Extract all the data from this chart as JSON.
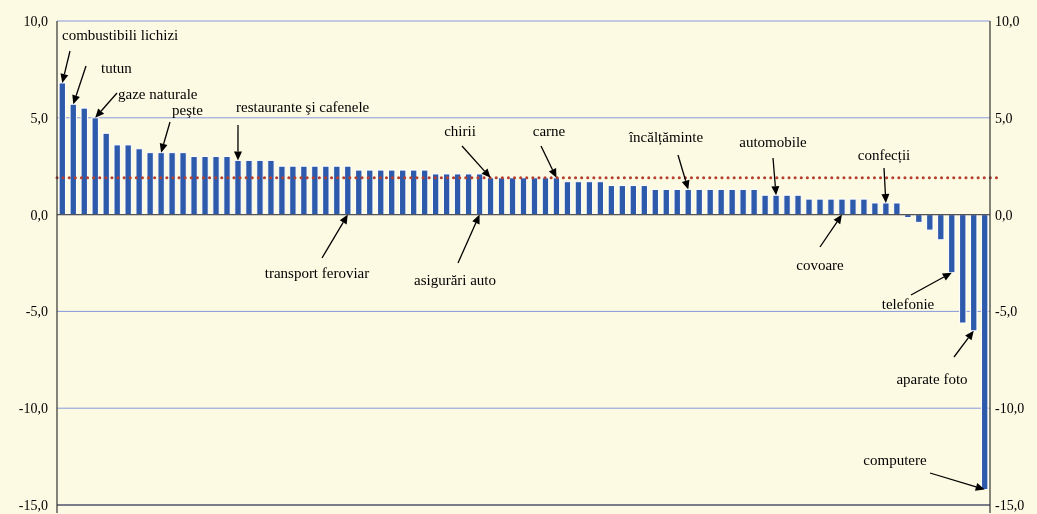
{
  "chart_data": {
    "type": "bar",
    "categories": [
      null,
      null,
      null,
      null,
      null,
      null,
      null,
      null,
      null,
      null,
      null,
      null,
      null,
      null,
      null,
      null,
      null,
      null,
      null,
      null,
      null,
      null,
      null,
      null,
      null,
      null,
      null,
      null,
      null,
      null,
      null,
      null,
      null,
      null,
      null,
      null,
      null,
      null,
      null,
      null,
      null,
      null,
      null,
      null,
      null,
      null,
      null,
      null,
      null,
      null,
      null,
      null,
      null,
      null,
      null,
      null,
      null,
      null,
      null,
      null,
      null,
      null,
      null,
      null,
      null,
      null,
      null,
      null,
      null,
      null,
      null,
      null,
      null,
      null,
      null,
      null,
      null,
      null,
      null,
      null,
      null,
      null,
      null,
      null,
      null
    ],
    "values": [
      6.8,
      5.7,
      5.5,
      5.0,
      4.2,
      3.6,
      3.6,
      3.4,
      3.2,
      3.2,
      3.2,
      3.2,
      3.0,
      3.0,
      3.0,
      3.0,
      2.8,
      2.8,
      2.8,
      2.8,
      2.5,
      2.5,
      2.5,
      2.5,
      2.5,
      2.5,
      2.5,
      2.3,
      2.3,
      2.3,
      2.3,
      2.3,
      2.3,
      2.3,
      2.1,
      2.1,
      2.1,
      2.1,
      2.1,
      1.9,
      1.9,
      1.9,
      1.9,
      1.9,
      1.9,
      1.9,
      1.7,
      1.7,
      1.7,
      1.7,
      1.5,
      1.5,
      1.5,
      1.5,
      1.3,
      1.3,
      1.3,
      1.3,
      1.3,
      1.3,
      1.3,
      1.3,
      1.3,
      1.3,
      1.0,
      1.0,
      1.0,
      1.0,
      0.8,
      0.8,
      0.8,
      0.8,
      0.8,
      0.8,
      0.6,
      0.6,
      0.6,
      -0.15,
      -0.4,
      -0.8,
      -1.3,
      -3.0,
      -5.6,
      -6.0,
      -14.2
    ],
    "color": "#2e5aac",
    "ylim": [
      -15,
      10
    ],
    "yticks": [
      {
        "value": -15,
        "label": "-15,0"
      },
      {
        "value": -10,
        "label": "-10,0"
      },
      {
        "value": -5,
        "label": "-5,0"
      },
      {
        "value": 0,
        "label": "0,0"
      },
      {
        "value": 5,
        "label": "5,0"
      },
      {
        "value": 10,
        "label": "10,0"
      }
    ],
    "y2lim": [
      -15,
      10
    ],
    "y2ticks": [
      {
        "value": -15,
        "label": "-15,0"
      },
      {
        "value": -10,
        "label": "-10,0"
      },
      {
        "value": -5,
        "label": "-5,0"
      },
      {
        "value": 0,
        "label": "0,0"
      },
      {
        "value": 5,
        "label": "5,0"
      },
      {
        "value": 10,
        "label": "10,0"
      }
    ],
    "grid": "y",
    "ref_lines": [
      {
        "axis": "y",
        "value": 1.9,
        "color": "#b5402f",
        "line_style": "dotted"
      }
    ],
    "annotations": [
      "combustibili lichizi",
      "tutun",
      "gaze naturale",
      "peşte",
      "restaurante şi cafenele",
      "transport feroviar",
      "chirii",
      "asigurări auto",
      "carne",
      "încălțăminte",
      "automobile",
      "covoare",
      "confecții",
      "telefonie",
      "aparate foto",
      "computere"
    ]
  }
}
